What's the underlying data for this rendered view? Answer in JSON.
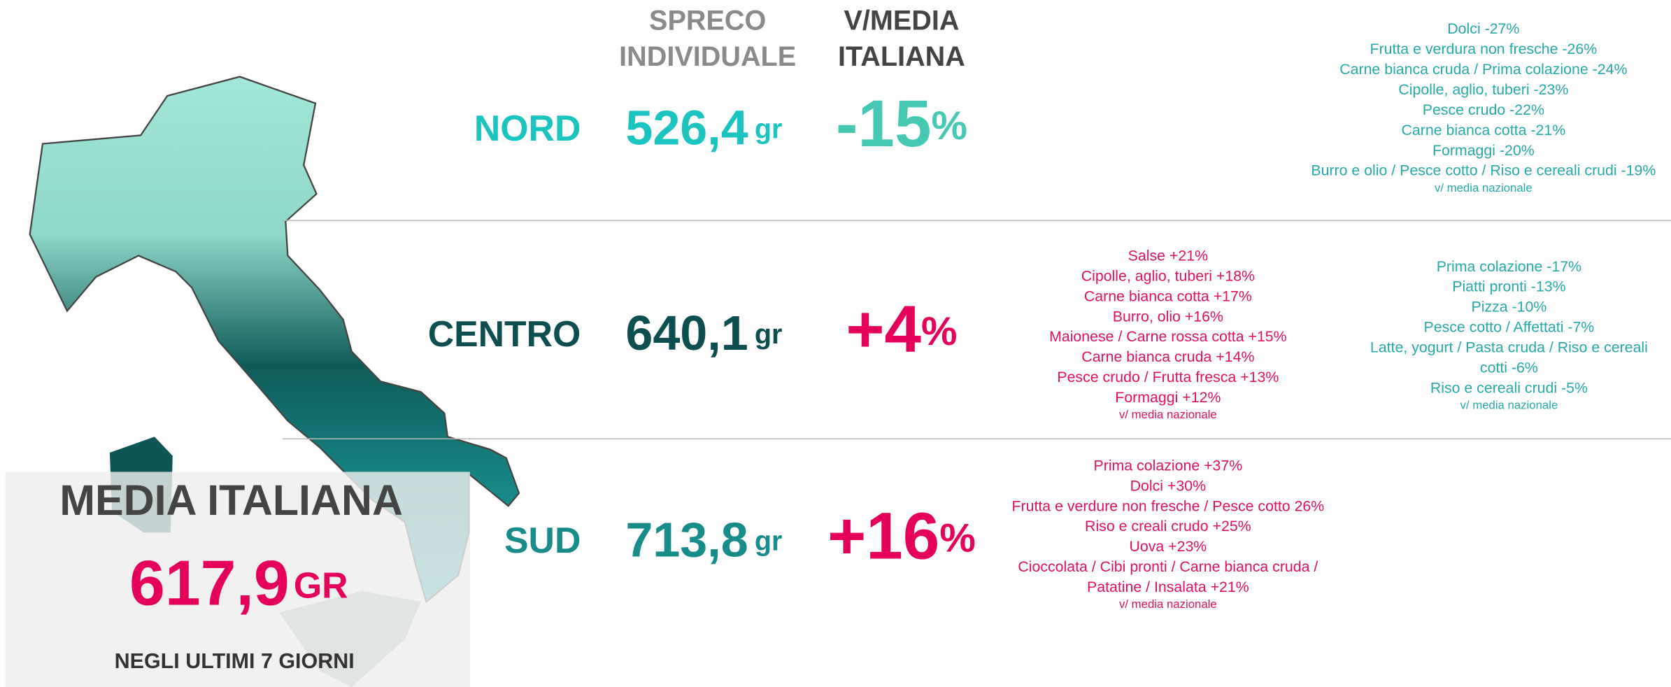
{
  "headers": {
    "waste": [
      "SPRECO",
      "INDIVIDUALE"
    ],
    "vs": [
      "V/MEDIA",
      "ITALIANA"
    ]
  },
  "regions": [
    {
      "name": "NORD",
      "value": "526,4",
      "unit": "gr",
      "diff": "-15",
      "diff_unit": "%",
      "notes": [
        {
          "lines": [
            "Dolci -27%",
            "Frutta e verdura non fresche -26%",
            "Carne bianca cruda / Prima colazione -24%",
            "Cipolle, aglio, tuberi -23%",
            "Pesce crudo -22%",
            "Carne bianca cotta -21%",
            "Formaggi -20%",
            "Burro e olio / Pesce cotto / Riso e cereali crudi -19%"
          ],
          "footnote": "v/ media nazionale"
        }
      ]
    },
    {
      "name": "CENTRO",
      "value": "640,1",
      "unit": "gr",
      "diff": "+4",
      "diff_unit": "%",
      "notes": [
        {
          "lines": [
            "Salse +21%",
            "Cipolle, aglio, tuberi +18%",
            "Carne bianca cotta +17%",
            "Burro, olio +16%",
            "Maionese / Carne rossa cotta +15%",
            "Carne bianca cruda +14%",
            "Pesce crudo / Frutta fresca +13%",
            "Formaggi +12%"
          ],
          "footnote": "v/ media nazionale"
        },
        {
          "lines": [
            "Prima colazione -17%",
            "Piatti pronti -13%",
            "Pizza -10%",
            "Pesce cotto / Affettati -7%",
            "Latte, yogurt / Pasta cruda / Riso e cereali",
            "cotti -6%",
            "Riso e cereali crudi -5%"
          ],
          "footnote": "v/ media nazionale"
        }
      ]
    },
    {
      "name": "SUD",
      "value": "713,8",
      "unit": "gr",
      "diff": "+16",
      "diff_unit": "%",
      "notes": [
        {
          "lines": [
            "Prima colazione +37%",
            "Dolci +30%",
            "Frutta e verdure non fresche / Pesce cotto 26%",
            "Riso e creali crudo +25%",
            "Uova +23%",
            "Cioccolata / Cibi pronti / Carne bianca cruda /",
            "Patatine / Insalata +21%"
          ],
          "footnote": "v/ media nazionale"
        }
      ]
    }
  ],
  "average": {
    "title": "MEDIA ITALIANA",
    "value": "617,9",
    "unit": "GR",
    "caption": "NEGLI ULTIMI 7 GIORNI"
  }
}
